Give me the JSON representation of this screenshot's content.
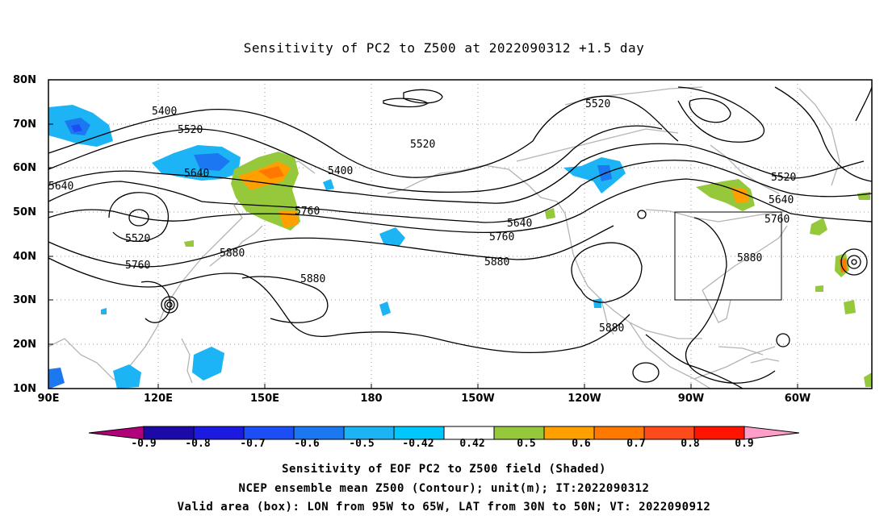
{
  "title": "Sensitivity of PC2 to Z500 at 2022090312 +1.5 day",
  "lat_labels": [
    "80N",
    "70N",
    "60N",
    "50N",
    "40N",
    "30N",
    "20N",
    "10N"
  ],
  "lon_labels": [
    "90E",
    "120E",
    "150E",
    "180",
    "150W",
    "120W",
    "90W",
    "60W"
  ],
  "contour_labels": [
    "5400",
    "5520",
    "5640",
    "5760",
    "5880"
  ],
  "colorbar": {
    "labels": [
      "-0.9",
      "-0.8",
      "-0.7",
      "-0.6",
      "-0.5",
      "-0.42",
      "0.42",
      "0.5",
      "0.6",
      "0.7",
      "0.8",
      "0.9"
    ],
    "colors": [
      "#b0007a",
      "#1c0aa8",
      "#1c19e0",
      "#1c4ef5",
      "#1c78f0",
      "#1cb4f5",
      "#00c8ff",
      "#ffffff",
      "#96c83c",
      "#ffa000",
      "#ff7800",
      "#ff4a1c",
      "#ff1400",
      "#ff9ec8"
    ]
  },
  "captions": {
    "line1": "Sensitivity of EOF PC2 to Z500 field (Shaded)",
    "line2": "NCEP ensemble mean Z500 (Contour); unit(m); IT:2022090312",
    "line3": "Valid area (box): LON from 95W to 65W, LAT from 30N to 50N; VT: 2022090912"
  }
}
